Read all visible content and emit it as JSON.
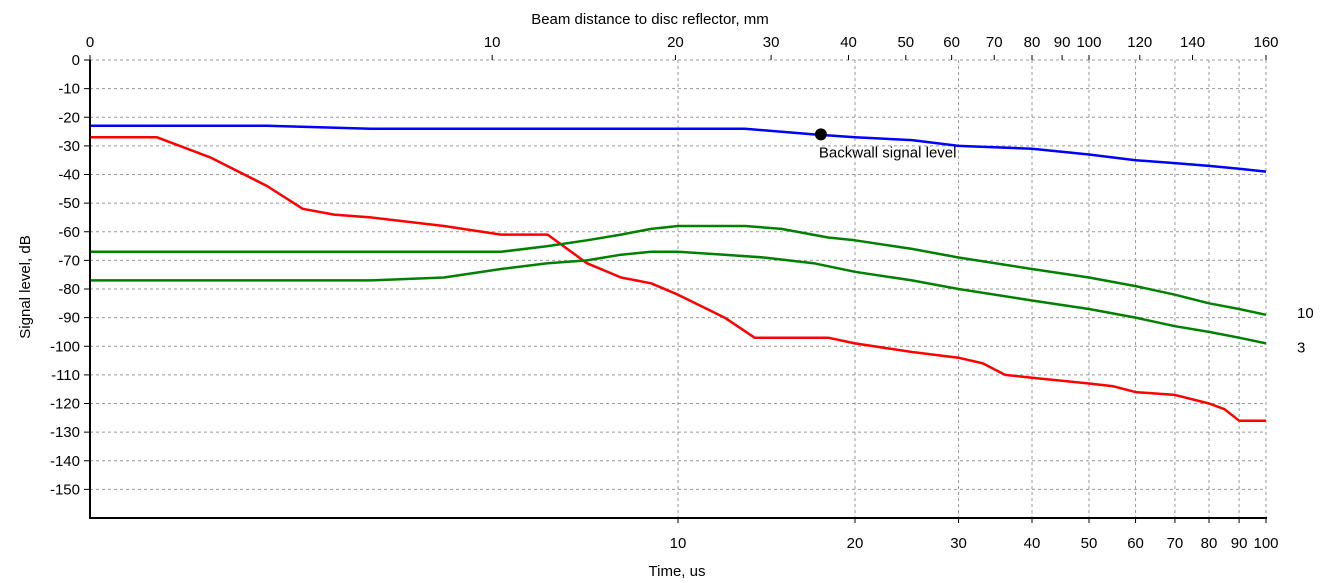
{
  "chart_data": {
    "type": "line",
    "title": "",
    "xlabel": "Time, us",
    "x2label": "Beam distance to disc reflector, mm",
    "ylabel": "Signal level, dB",
    "xscale": "log",
    "xlim": [
      1,
      100
    ],
    "x2lim": [
      0,
      160
    ],
    "ylim": [
      -160,
      0
    ],
    "grid": true,
    "x_ticks": [
      {
        "value": 10,
        "label": "10"
      },
      {
        "value": 20,
        "label": "20"
      },
      {
        "value": 30,
        "label": "30"
      },
      {
        "value": 40,
        "label": "40"
      },
      {
        "value": 50,
        "label": "50"
      },
      {
        "value": 60,
        "label": "60"
      },
      {
        "value": 70,
        "label": "70"
      },
      {
        "value": 80,
        "label": "80"
      },
      {
        "value": 90,
        "label": "90"
      },
      {
        "value": 100,
        "label": "100"
      }
    ],
    "x2_ticks": [
      {
        "x": 1.0,
        "label": "0"
      },
      {
        "x": 4.83,
        "label": "10"
      },
      {
        "x": 9.9,
        "label": "20"
      },
      {
        "x": 14.4,
        "label": "30"
      },
      {
        "x": 19.5,
        "label": "40"
      },
      {
        "x": 24.4,
        "label": "50"
      },
      {
        "x": 29.2,
        "label": "60"
      },
      {
        "x": 34.5,
        "label": "70"
      },
      {
        "x": 40.0,
        "label": "80"
      },
      {
        "x": 45.0,
        "label": "90"
      },
      {
        "x": 50.0,
        "label": "100"
      },
      {
        "x": 61.0,
        "label": "120"
      },
      {
        "x": 75.0,
        "label": "140"
      },
      {
        "x": 100.0,
        "label": "160"
      }
    ],
    "y_ticks": [
      0,
      -10,
      -20,
      -30,
      -40,
      -50,
      -60,
      -70,
      -80,
      -90,
      -100,
      -110,
      -120,
      -130,
      -140,
      -150
    ],
    "series": [
      {
        "name": "",
        "color": "#0000ff",
        "points": [
          [
            1.0,
            -23
          ],
          [
            2.0,
            -23
          ],
          [
            3.0,
            -24
          ],
          [
            5.0,
            -24
          ],
          [
            8.0,
            -24
          ],
          [
            10.0,
            -24
          ],
          [
            13.0,
            -24
          ],
          [
            17.0,
            -26
          ],
          [
            20.0,
            -27
          ],
          [
            25.0,
            -28
          ],
          [
            30.0,
            -30
          ],
          [
            40.0,
            -31
          ],
          [
            50.0,
            -33
          ],
          [
            60.0,
            -35
          ],
          [
            70.0,
            -36
          ],
          [
            80.0,
            -37
          ],
          [
            90.0,
            -38
          ],
          [
            100.0,
            -39
          ]
        ]
      },
      {
        "name": "",
        "color": "#ff0000",
        "points": [
          [
            1.0,
            -27
          ],
          [
            1.3,
            -27
          ],
          [
            1.6,
            -34
          ],
          [
            2.0,
            -44
          ],
          [
            2.3,
            -52
          ],
          [
            2.6,
            -54
          ],
          [
            3.0,
            -55
          ],
          [
            4.0,
            -58
          ],
          [
            5.0,
            -61
          ],
          [
            6.0,
            -61
          ],
          [
            7.0,
            -71
          ],
          [
            8.0,
            -76
          ],
          [
            9.0,
            -78
          ],
          [
            10.0,
            -82
          ],
          [
            12.0,
            -90
          ],
          [
            13.5,
            -97
          ],
          [
            15.0,
            -97
          ],
          [
            18.0,
            -97
          ],
          [
            20.0,
            -99
          ],
          [
            25.0,
            -102
          ],
          [
            30.0,
            -104
          ],
          [
            33.0,
            -106
          ],
          [
            36.0,
            -110
          ],
          [
            40.0,
            -111
          ],
          [
            50.0,
            -113
          ],
          [
            55.0,
            -114
          ],
          [
            60.0,
            -116
          ],
          [
            70.0,
            -117
          ],
          [
            80.0,
            -120
          ],
          [
            85.0,
            -122
          ],
          [
            90.0,
            -126
          ],
          [
            100.0,
            -126
          ]
        ]
      },
      {
        "name": "10",
        "color": "#008000",
        "points": [
          [
            1.0,
            -67
          ],
          [
            3.0,
            -67
          ],
          [
            5.0,
            -67
          ],
          [
            6.0,
            -65
          ],
          [
            7.0,
            -63
          ],
          [
            8.0,
            -61
          ],
          [
            9.0,
            -59
          ],
          [
            10.0,
            -58
          ],
          [
            12.0,
            -58
          ],
          [
            13.0,
            -58
          ],
          [
            15.0,
            -59
          ],
          [
            18.0,
            -62
          ],
          [
            20.0,
            -63
          ],
          [
            25.0,
            -66
          ],
          [
            30.0,
            -69
          ],
          [
            40.0,
            -73
          ],
          [
            50.0,
            -76
          ],
          [
            60.0,
            -79
          ],
          [
            70.0,
            -82
          ],
          [
            80.0,
            -85
          ],
          [
            90.0,
            -87
          ],
          [
            100.0,
            -89
          ]
        ]
      },
      {
        "name": "3",
        "color": "#008000",
        "points": [
          [
            1.0,
            -77
          ],
          [
            2.0,
            -77
          ],
          [
            3.0,
            -77
          ],
          [
            4.0,
            -76
          ],
          [
            5.0,
            -73
          ],
          [
            6.0,
            -71
          ],
          [
            7.0,
            -70
          ],
          [
            8.0,
            -68
          ],
          [
            9.0,
            -67
          ],
          [
            10.0,
            -67
          ],
          [
            12.0,
            -68
          ],
          [
            14.0,
            -69
          ],
          [
            17.0,
            -71
          ],
          [
            20.0,
            -74
          ],
          [
            25.0,
            -77
          ],
          [
            30.0,
            -80
          ],
          [
            40.0,
            -84
          ],
          [
            50.0,
            -87
          ],
          [
            60.0,
            -90
          ],
          [
            70.0,
            -93
          ],
          [
            80.0,
            -95
          ],
          [
            90.0,
            -97
          ],
          [
            100.0,
            -99
          ]
        ]
      }
    ],
    "annotation": {
      "text": "Backwall signal level",
      "x": 17.5,
      "y": -26
    }
  }
}
